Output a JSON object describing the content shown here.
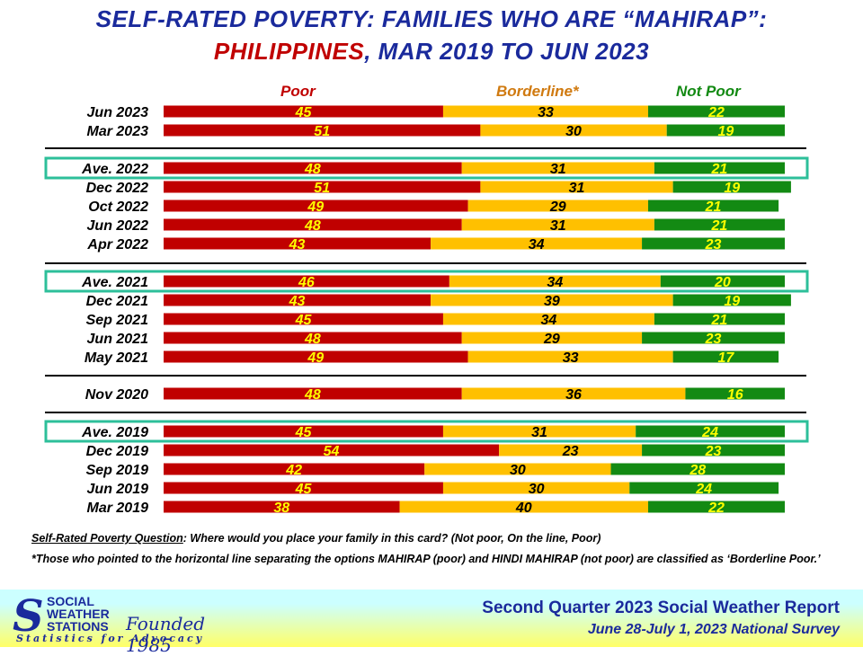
{
  "title": {
    "line1": "SELF-RATED POVERTY: FAMILIES WHO ARE “MAHIRAP”:",
    "line2_red": "PHILIPPINES",
    "line2_rest": ", MAR 2019 TO JUN 2023"
  },
  "colors": {
    "poor": "#c00000",
    "borderline": "#ffc000",
    "notpoor": "#138a13",
    "highlight": "#2dbf9a",
    "poor_label": "#ffff00",
    "borderline_label": "#000000",
    "notpoor_label": "#ffff00"
  },
  "chart_data": {
    "type": "bar",
    "orientation": "horizontal",
    "stacked": true,
    "unit": "percent",
    "series": [
      {
        "name": "Poor",
        "key": "poor"
      },
      {
        "name": "Borderline*",
        "key": "borderline"
      },
      {
        "name": "Not Poor",
        "key": "notpoor"
      }
    ],
    "rows": [
      {
        "label": "Jun 2023",
        "poor": 45,
        "borderline": 33,
        "notpoor": 22,
        "highlight": false
      },
      {
        "label": "Mar 2023",
        "poor": 51,
        "borderline": 30,
        "notpoor": 19,
        "highlight": false
      },
      {
        "label": "Ave. 2022",
        "poor": 48,
        "borderline": 31,
        "notpoor": 21,
        "highlight": true
      },
      {
        "label": "Dec 2022",
        "poor": 51,
        "borderline": 31,
        "notpoor": 19,
        "highlight": false
      },
      {
        "label": "Oct 2022",
        "poor": 49,
        "borderline": 29,
        "notpoor": 21,
        "highlight": false
      },
      {
        "label": "Jun 2022",
        "poor": 48,
        "borderline": 31,
        "notpoor": 21,
        "highlight": false
      },
      {
        "label": "Apr 2022",
        "poor": 43,
        "borderline": 34,
        "notpoor": 23,
        "highlight": false
      },
      {
        "label": "Ave. 2021",
        "poor": 46,
        "borderline": 34,
        "notpoor": 20,
        "highlight": true
      },
      {
        "label": "Dec 2021",
        "poor": 43,
        "borderline": 39,
        "notpoor": 19,
        "highlight": false
      },
      {
        "label": "Sep 2021",
        "poor": 45,
        "borderline": 34,
        "notpoor": 21,
        "highlight": false
      },
      {
        "label": "Jun 2021",
        "poor": 48,
        "borderline": 29,
        "notpoor": 23,
        "highlight": false
      },
      {
        "label": "May 2021",
        "poor": 49,
        "borderline": 33,
        "notpoor": 17,
        "highlight": false
      },
      {
        "label": "Nov 2020",
        "poor": 48,
        "borderline": 36,
        "notpoor": 16,
        "highlight": false
      },
      {
        "label": "Ave. 2019",
        "poor": 45,
        "borderline": 31,
        "notpoor": 24,
        "highlight": true
      },
      {
        "label": "Dec 2019",
        "poor": 54,
        "borderline": 23,
        "notpoor": 23,
        "highlight": false
      },
      {
        "label": "Sep 2019",
        "poor": 42,
        "borderline": 30,
        "notpoor": 28,
        "highlight": false
      },
      {
        "label": "Jun 2019",
        "poor": 45,
        "borderline": 30,
        "notpoor": 24,
        "highlight": false
      },
      {
        "label": "Mar 2019",
        "poor": 38,
        "borderline": 40,
        "notpoor": 22,
        "highlight": false
      }
    ]
  },
  "notes": {
    "question_label": "Self-Rated Poverty Question",
    "question_text": ":  Where would you place your family in this card?  (Not poor, On the line, Poor)",
    "borderline_note": "*Those who pointed to the horizontal line separating the options MAHIRAP (poor) and HINDI MAHIRAP (not poor) are classified as ‘Borderline Poor.’"
  },
  "footer": {
    "logo_line1": "SOCIAL",
    "logo_line2": "WEATHER",
    "logo_line3": "STATIONS",
    "founded": "Founded 1985",
    "tagline": "Statistics for Advocacy",
    "report_title": "Second Quarter 2023 Social Weather Report",
    "survey_dates": "June 28-July 1, 2023 National Survey"
  }
}
